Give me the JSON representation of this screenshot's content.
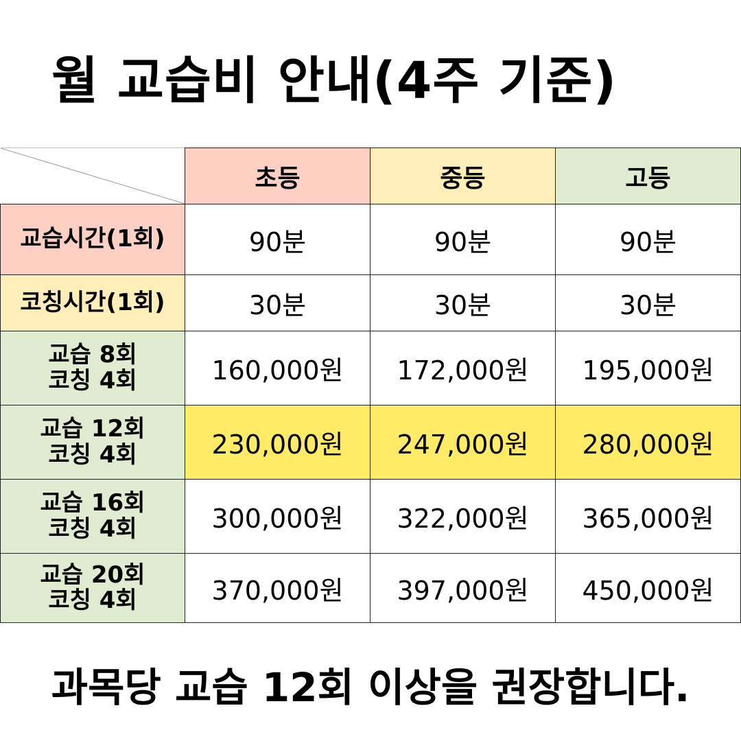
{
  "title": "월 교습비 안내(4주 기준)",
  "columns": {
    "elementary": "초등",
    "middle": "중등",
    "high": "고등"
  },
  "rows": {
    "lesson_time": {
      "label": "교습시간(1회)",
      "elementary": "90분",
      "middle": "90분",
      "high": "90분"
    },
    "coaching_time": {
      "label": "코칭시간(1회)",
      "elementary": "30분",
      "middle": "30분",
      "high": "30분"
    },
    "plan8": {
      "label_line1": "교습 8회",
      "label_line2": "코칭 4회",
      "elementary": "160,000원",
      "middle": "172,000원",
      "high": "195,000원"
    },
    "plan12": {
      "label_line1": "교습 12회",
      "label_line2": "코칭 4회",
      "elementary": "230,000원",
      "middle": "247,000원",
      "high": "280,000원"
    },
    "plan16": {
      "label_line1": "교습 16회",
      "label_line2": "코칭 4회",
      "elementary": "300,000원",
      "middle": "322,000원",
      "high": "365,000원"
    },
    "plan20": {
      "label_line1": "교습 20회",
      "label_line2": "코칭 4회",
      "elementary": "370,000원",
      "middle": "397,000원",
      "high": "450,000원"
    }
  },
  "footer": "과목당 교습 12회 이상을 권장합니다.",
  "colors": {
    "elementary_header": "#fdd0c3",
    "middle_header": "#ffeeb8",
    "high_header": "#dfecd0",
    "highlight_row": "#ffeb66"
  }
}
